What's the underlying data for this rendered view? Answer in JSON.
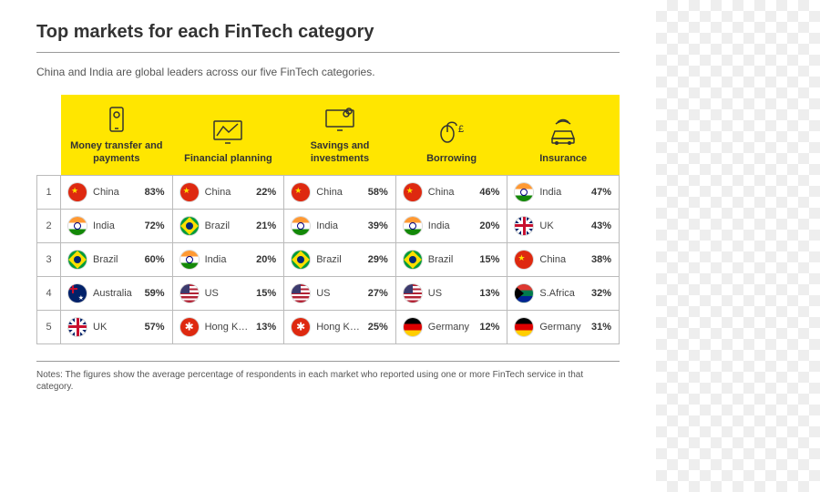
{
  "title": "Top markets for each FinTech category",
  "subtitle": "China and India are global leaders across our five FinTech categories.",
  "notes": "Notes: The figures show the average percentage of respondents in each market who reported using one or more FinTech service in that category.",
  "colors": {
    "header_bg": "#ffe600",
    "border": "#bbbbbb",
    "text": "#333333"
  },
  "categories": [
    {
      "icon": "phone",
      "label": "Money transfer and payments"
    },
    {
      "icon": "chart",
      "label": "Financial planning"
    },
    {
      "icon": "monitor",
      "label": "Savings and investments"
    },
    {
      "icon": "mouse",
      "label": "Borrowing"
    },
    {
      "icon": "car",
      "label": "Insurance"
    }
  ],
  "rows": [
    {
      "rank": "1",
      "cells": [
        {
          "flag": "china",
          "country": "China",
          "pct": "83%"
        },
        {
          "flag": "china",
          "country": "China",
          "pct": "22%"
        },
        {
          "flag": "china",
          "country": "China",
          "pct": "58%"
        },
        {
          "flag": "china",
          "country": "China",
          "pct": "46%"
        },
        {
          "flag": "india",
          "country": "India",
          "pct": "47%"
        }
      ]
    },
    {
      "rank": "2",
      "cells": [
        {
          "flag": "india",
          "country": "India",
          "pct": "72%"
        },
        {
          "flag": "brazil",
          "country": "Brazil",
          "pct": "21%"
        },
        {
          "flag": "india",
          "country": "India",
          "pct": "39%"
        },
        {
          "flag": "india",
          "country": "India",
          "pct": "20%"
        },
        {
          "flag": "uk",
          "country": "UK",
          "pct": "43%"
        }
      ]
    },
    {
      "rank": "3",
      "cells": [
        {
          "flag": "brazil",
          "country": "Brazil",
          "pct": "60%"
        },
        {
          "flag": "india",
          "country": "India",
          "pct": "20%"
        },
        {
          "flag": "brazil",
          "country": "Brazil",
          "pct": "29%"
        },
        {
          "flag": "brazil",
          "country": "Brazil",
          "pct": "15%"
        },
        {
          "flag": "china",
          "country": "China",
          "pct": "38%"
        }
      ]
    },
    {
      "rank": "4",
      "cells": [
        {
          "flag": "australia",
          "country": "Australia",
          "pct": "59%"
        },
        {
          "flag": "us",
          "country": "US",
          "pct": "15%"
        },
        {
          "flag": "us",
          "country": "US",
          "pct": "27%"
        },
        {
          "flag": "us",
          "country": "US",
          "pct": "13%"
        },
        {
          "flag": "safrica",
          "country": "S.Africa",
          "pct": "32%"
        }
      ]
    },
    {
      "rank": "5",
      "cells": [
        {
          "flag": "uk",
          "country": "UK",
          "pct": "57%"
        },
        {
          "flag": "hongkong",
          "country": "Hong Kong",
          "pct": "13%"
        },
        {
          "flag": "hongkong",
          "country": "Hong Kong",
          "pct": "25%"
        },
        {
          "flag": "germany",
          "country": "Germany",
          "pct": "12%"
        },
        {
          "flag": "germany",
          "country": "Germany",
          "pct": "31%"
        }
      ]
    }
  ]
}
